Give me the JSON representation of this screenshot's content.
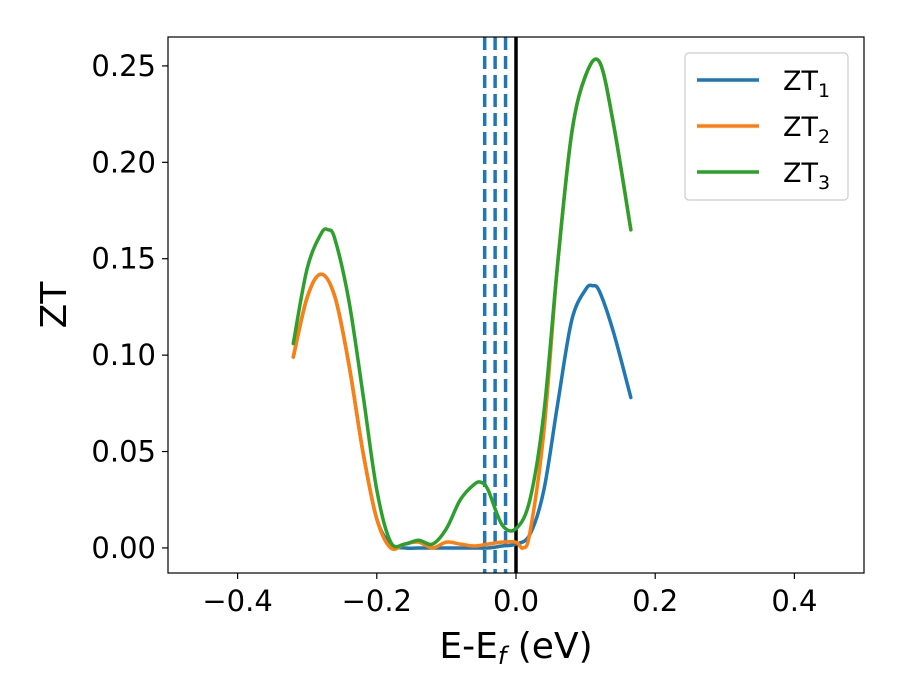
{
  "chart_data": {
    "type": "line",
    "title": "",
    "xlabel": "E-E",
    "xlabel_sub": "f",
    "xlabel_unit": " (eV)",
    "ylabel": "ZT",
    "xlim": [
      -0.5,
      0.5
    ],
    "ylim": [
      -0.013,
      0.265
    ],
    "xticks": [
      -0.4,
      -0.2,
      0.0,
      0.2,
      0.4
    ],
    "xtick_labels": [
      "−0.4",
      "−0.2",
      "0.0",
      "0.2",
      "0.4"
    ],
    "yticks": [
      0.0,
      0.05,
      0.1,
      0.15,
      0.2,
      0.25
    ],
    "ytick_labels": [
      "0.00",
      "0.05",
      "0.10",
      "0.15",
      "0.20",
      "0.25"
    ],
    "grid": false,
    "legend_position": "top-right",
    "vertical_lines": [
      {
        "x": -0.045,
        "style": "dashed",
        "color": "#1f77b4"
      },
      {
        "x": -0.03,
        "style": "dashed",
        "color": "#1f77b4"
      },
      {
        "x": -0.015,
        "style": "dashed",
        "color": "#1f77b4"
      },
      {
        "x": 0.0,
        "style": "solid",
        "color": "#000000"
      }
    ],
    "series": [
      {
        "name": "ZT",
        "name_sub": "1",
        "color": "#1f77b4",
        "x": [
          -0.32,
          -0.3,
          -0.28,
          -0.26,
          -0.24,
          -0.22,
          -0.2,
          -0.18,
          -0.16,
          -0.14,
          -0.12,
          -0.1,
          -0.08,
          -0.06,
          -0.04,
          -0.02,
          0.0,
          0.02,
          0.04,
          0.06,
          0.08,
          0.1,
          0.11,
          0.12,
          0.14,
          0.165
        ],
        "y": [
          0.099,
          0.13,
          0.142,
          0.13,
          0.095,
          0.05,
          0.015,
          0.002,
          0.0,
          0.0,
          0.0,
          0.0,
          0.0,
          0.0,
          0.0,
          0.001,
          0.002,
          0.007,
          0.03,
          0.075,
          0.118,
          0.134,
          0.136,
          0.133,
          0.112,
          0.078
        ]
      },
      {
        "name": "ZT",
        "name_sub": "2",
        "color": "#ff7f0e",
        "x": [
          -0.32,
          -0.3,
          -0.28,
          -0.26,
          -0.24,
          -0.22,
          -0.2,
          -0.18,
          -0.16,
          -0.14,
          -0.12,
          -0.1,
          -0.08,
          -0.06,
          -0.04,
          -0.02,
          0.0,
          0.01,
          0.02,
          0.04,
          0.06,
          0.08,
          0.1,
          0.12,
          0.14,
          0.165
        ],
        "y": [
          0.099,
          0.13,
          0.142,
          0.13,
          0.095,
          0.05,
          0.015,
          0.0,
          0.002,
          0.003,
          0.0,
          0.003,
          0.002,
          0.001,
          0.002,
          0.003,
          0.003,
          0.0,
          0.008,
          0.06,
          0.148,
          0.215,
          0.245,
          0.252,
          0.22,
          0.165
        ]
      },
      {
        "name": "ZT",
        "name_sub": "3",
        "color": "#2ca02c",
        "x": [
          -0.32,
          -0.3,
          -0.28,
          -0.27,
          -0.26,
          -0.24,
          -0.22,
          -0.2,
          -0.18,
          -0.16,
          -0.14,
          -0.12,
          -0.1,
          -0.08,
          -0.06,
          -0.05,
          -0.04,
          -0.02,
          0.0,
          0.02,
          0.04,
          0.06,
          0.08,
          0.1,
          0.12,
          0.14,
          0.165
        ],
        "y": [
          0.106,
          0.145,
          0.163,
          0.165,
          0.16,
          0.128,
          0.08,
          0.03,
          0.003,
          0.002,
          0.004,
          0.002,
          0.01,
          0.025,
          0.033,
          0.034,
          0.03,
          0.012,
          0.01,
          0.025,
          0.07,
          0.148,
          0.215,
          0.245,
          0.252,
          0.22,
          0.165
        ]
      }
    ]
  }
}
